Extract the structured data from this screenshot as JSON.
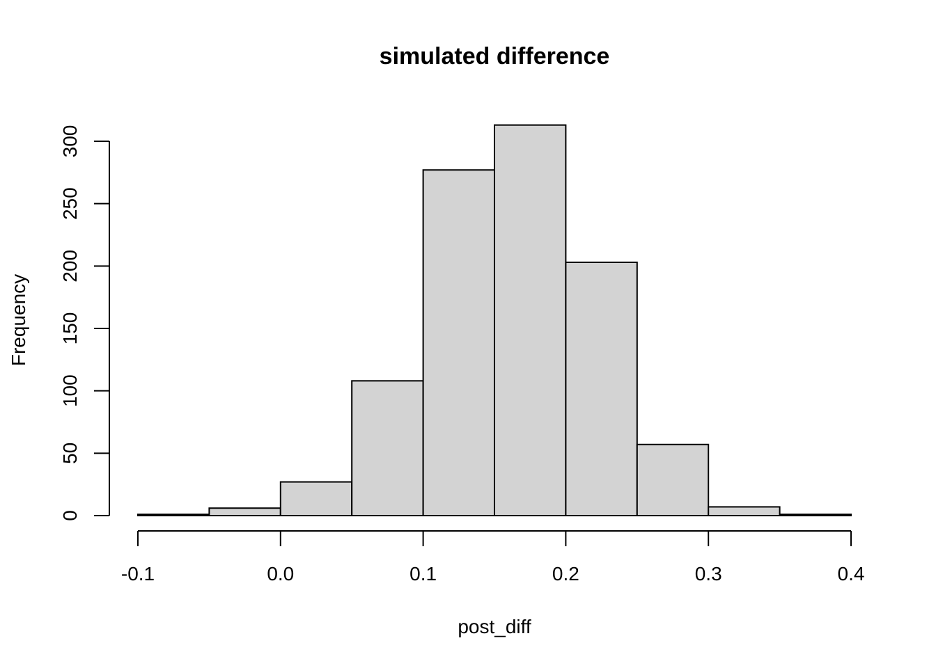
{
  "chart_data": {
    "type": "bar",
    "title": "simulated difference",
    "xlabel": "post_diff",
    "ylabel": "Frequency",
    "bins": [
      {
        "x0": -0.1,
        "x1": -0.05,
        "count": 1
      },
      {
        "x0": -0.05,
        "x1": 0.0,
        "count": 6
      },
      {
        "x0": 0.0,
        "x1": 0.05,
        "count": 27
      },
      {
        "x0": 0.05,
        "x1": 0.1,
        "count": 108
      },
      {
        "x0": 0.1,
        "x1": 0.15,
        "count": 277
      },
      {
        "x0": 0.15,
        "x1": 0.2,
        "count": 313
      },
      {
        "x0": 0.2,
        "x1": 0.25,
        "count": 203
      },
      {
        "x0": 0.25,
        "x1": 0.3,
        "count": 57
      },
      {
        "x0": 0.3,
        "x1": 0.35,
        "count": 7
      },
      {
        "x0": 0.35,
        "x1": 0.4,
        "count": 1
      }
    ],
    "xlim": [
      -0.1,
      0.4
    ],
    "ylim": [
      0,
      300
    ],
    "xticks": [
      {
        "value": -0.1,
        "label": "-0.1"
      },
      {
        "value": 0.0,
        "label": "0.0"
      },
      {
        "value": 0.1,
        "label": "0.1"
      },
      {
        "value": 0.2,
        "label": "0.2"
      },
      {
        "value": 0.3,
        "label": "0.3"
      },
      {
        "value": 0.4,
        "label": "0.4"
      }
    ],
    "yticks": [
      {
        "value": 0,
        "label": "0"
      },
      {
        "value": 50,
        "label": "50"
      },
      {
        "value": 100,
        "label": "100"
      },
      {
        "value": 150,
        "label": "150"
      },
      {
        "value": 200,
        "label": "200"
      },
      {
        "value": 250,
        "label": "250"
      },
      {
        "value": 300,
        "label": "300"
      }
    ],
    "grid": false,
    "bar_fill": "#d3d3d3",
    "bar_stroke": "#000000"
  }
}
